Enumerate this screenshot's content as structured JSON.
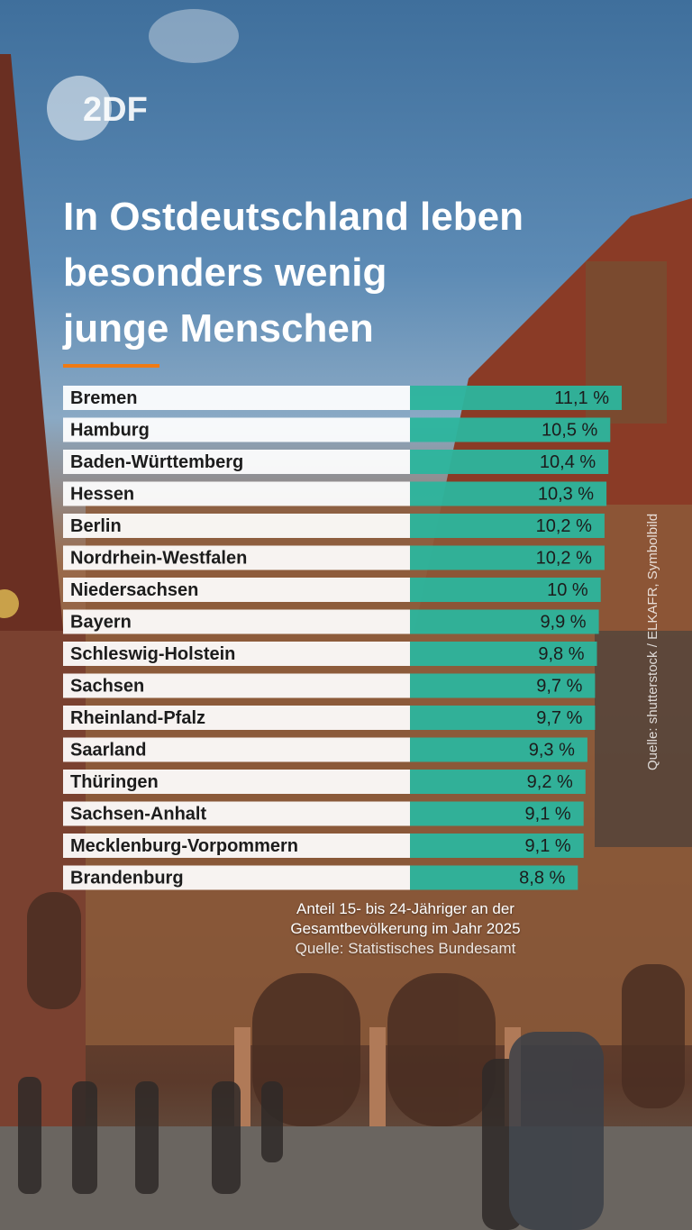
{
  "brand": {
    "logo_text": "2DF"
  },
  "headline": {
    "line1": "In Ostdeutschland leben",
    "line2": "besonders wenig",
    "line3": "junge Menschen"
  },
  "colors": {
    "bar": "#2cb59d",
    "label_bg": "#ffffff",
    "accent": "#f07a12",
    "text": "#1c1c1c"
  },
  "chart_data": {
    "type": "bar",
    "orientation": "horizontal",
    "unit": "%",
    "categories": [
      "Bremen",
      "Hamburg",
      "Baden-Württemberg",
      "Hessen",
      "Berlin",
      "Nordrhein-Westfalen",
      "Niedersachsen",
      "Bayern",
      "Schleswig-Holstein",
      "Sachsen",
      "Rheinland-Pfalz",
      "Saarland",
      "Thüringen",
      "Sachsen-Anhalt",
      "Mecklenburg-Vorpommern",
      "Brandenburg"
    ],
    "values": [
      11.1,
      10.5,
      10.4,
      10.3,
      10.2,
      10.2,
      10.0,
      9.9,
      9.8,
      9.7,
      9.7,
      9.3,
      9.2,
      9.1,
      9.1,
      8.8
    ],
    "value_labels": [
      "11,1 %",
      "10,5 %",
      "10,4 %",
      "10,3 %",
      "10,2 %",
      "10,2 %",
      "10 %",
      "9,9 %",
      "9,8 %",
      "9,7 %",
      "9,7 %",
      "9,3 %",
      "9,2 %",
      "9,1 %",
      "9,1 %",
      "8,8 %"
    ]
  },
  "caption": {
    "line1": "Anteil 15- bis 24-Jähriger an der",
    "line2": "Gesamtbevölkerung im Jahr 2025",
    "source": "Quelle: Statistisches Bundesamt"
  },
  "side_credit": "Quelle: shutterstock / ELKAFR, Symbolbild"
}
